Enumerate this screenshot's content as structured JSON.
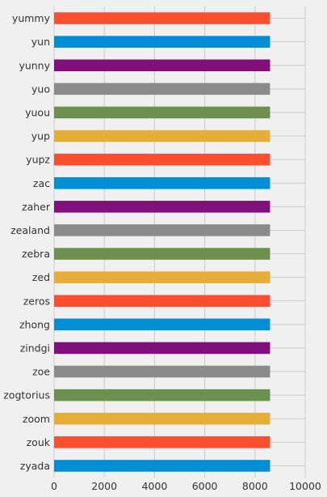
{
  "chart_data": {
    "type": "bar",
    "orientation": "horizontal",
    "title": "",
    "xlabel": "",
    "ylabel": "",
    "categories": [
      "zyada",
      "zouk",
      "zoom",
      "zogtorius",
      "zoe",
      "zindgi",
      "zhong",
      "zeros",
      "zed",
      "zebra",
      "zealand",
      "zaher",
      "zac",
      "yupz",
      "yup",
      "yuou",
      "yuo",
      "yunny",
      "yun",
      "yummy"
    ],
    "values": [
      8600,
      8600,
      8600,
      8600,
      8600,
      8600,
      8600,
      8600,
      8600,
      8600,
      8600,
      8600,
      8600,
      8600,
      8600,
      8600,
      8600,
      8600,
      8600,
      8600
    ],
    "xlim": [
      0,
      10000
    ],
    "xticks": [
      0,
      2000,
      4000,
      6000,
      8000,
      10000
    ],
    "grid": true,
    "legend": "none",
    "colors": [
      "#008fd5",
      "#fc4f30",
      "#e5ae38",
      "#6d904f",
      "#8b8b8b",
      "#810f7c"
    ]
  }
}
